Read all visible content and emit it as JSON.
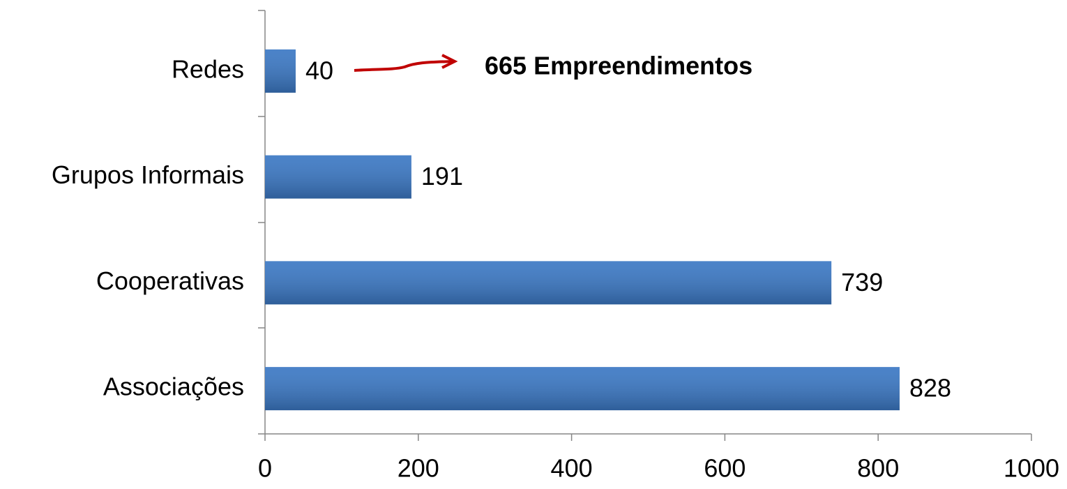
{
  "chart_data": {
    "type": "bar",
    "orientation": "horizontal",
    "categories": [
      "Redes",
      "Grupos Informais",
      "Cooperativas",
      "Associações"
    ],
    "values": [
      40,
      191,
      739,
      828
    ],
    "color": "#3b78c4",
    "xlim": [
      0,
      1000
    ],
    "xticks": [
      0,
      200,
      400,
      600,
      800,
      1000
    ],
    "annotation": {
      "text": "665 Empreendimentos",
      "color": "#c00000"
    }
  }
}
